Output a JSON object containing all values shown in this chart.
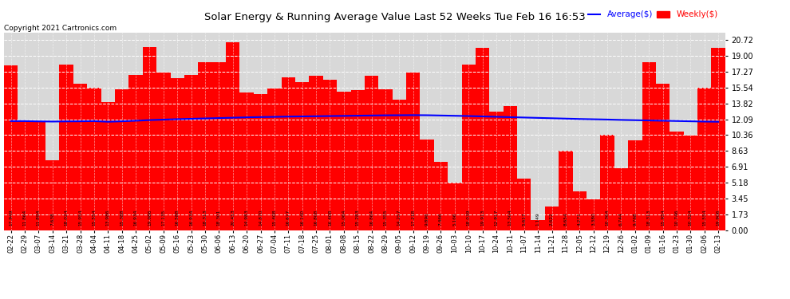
{
  "title": "Solar Energy & Running Average Value Last 52 Weeks Tue Feb 16 16:53",
  "copyright": "Copyright 2021 Cartronics.com",
  "bar_color": "#ff0000",
  "avg_line_color": "#0000ff",
  "weekly_line_color": "#ff0000",
  "background_color": "#ffffff",
  "plot_bg_color": "#d8d8d8",
  "grid_color": "#ffffff",
  "categories": [
    "02-22",
    "02-29",
    "03-07",
    "03-14",
    "03-21",
    "03-28",
    "04-04",
    "04-11",
    "04-18",
    "04-25",
    "05-02",
    "05-09",
    "05-16",
    "05-23",
    "05-30",
    "06-06",
    "06-13",
    "06-20",
    "06-27",
    "07-04",
    "07-11",
    "07-18",
    "07-25",
    "08-01",
    "08-08",
    "08-15",
    "08-22",
    "08-29",
    "09-05",
    "09-12",
    "09-19",
    "09-26",
    "10-03",
    "10-10",
    "10-17",
    "10-24",
    "10-31",
    "11-07",
    "11-14",
    "11-21",
    "11-28",
    "12-05",
    "12-12",
    "12-19",
    "12-26",
    "01-02",
    "01-09",
    "01-16",
    "01-23",
    "01-30",
    "02-06",
    "02-13"
  ],
  "weekly_values": [
    17.949,
    11.864,
    11.894,
    7.638,
    18.024,
    15.954,
    15.554,
    13.986,
    15.388,
    16.934,
    19.986,
    17.135,
    16.588,
    16.934,
    18.313,
    18.301,
    20.453,
    14.983,
    14.87,
    15.408,
    16.677,
    16.14,
    16.808,
    16.408,
    15.064,
    15.283,
    16.864,
    15.355,
    14.257,
    17.218,
    9.896,
    7.466,
    5.166,
    18.039,
    19.913,
    12.917,
    13.504,
    5.617,
    1.149,
    2.622,
    8.654,
    4.271,
    3.38,
    10.364,
    6.744,
    9.768,
    18.313,
    15.954,
    10.746,
    10.324,
    15.554,
    19.906
  ],
  "avg_values": [
    11.89,
    11.89,
    11.86,
    11.84,
    11.86,
    11.87,
    11.89,
    11.82,
    11.87,
    11.93,
    12.0,
    12.05,
    12.1,
    12.14,
    12.18,
    12.22,
    12.26,
    12.3,
    12.33,
    12.35,
    12.38,
    12.4,
    12.42,
    12.44,
    12.46,
    12.48,
    12.5,
    12.52,
    12.53,
    12.54,
    12.53,
    12.5,
    12.47,
    12.44,
    12.4,
    12.36,
    12.32,
    12.28,
    12.24,
    12.2,
    12.16,
    12.12,
    12.09,
    12.06,
    12.02,
    11.99,
    11.96,
    11.93,
    11.9,
    11.87,
    11.84,
    11.82
  ],
  "yticks": [
    0.0,
    1.73,
    3.45,
    5.18,
    6.91,
    8.63,
    10.36,
    12.09,
    13.82,
    15.54,
    17.27,
    19.0,
    20.72
  ],
  "ymax": 21.5,
  "legend_avg": "Average($)",
  "legend_weekly": "Weekly($)"
}
